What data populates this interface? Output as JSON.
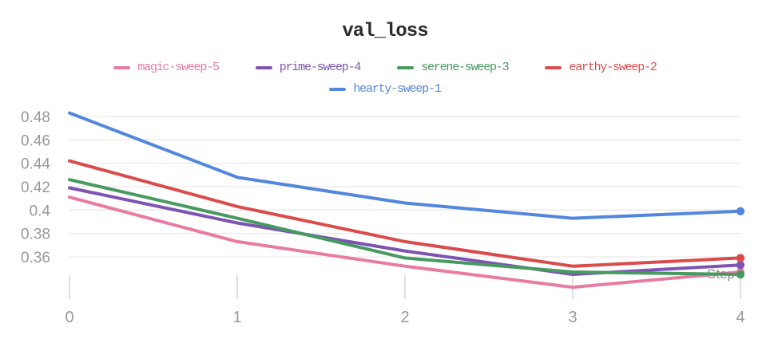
{
  "chart_data": {
    "type": "line",
    "title": "val_loss",
    "xlabel": "Step",
    "x": [
      0,
      1,
      2,
      3,
      4
    ],
    "xtick_labels": [
      "0",
      "1",
      "2",
      "3",
      "4"
    ],
    "ytick_values": [
      0.48,
      0.46,
      0.44,
      0.42,
      0.4,
      0.38,
      0.36
    ],
    "ytick_labels": [
      "0.48",
      "0.46",
      "0.44",
      "0.42",
      "0.4",
      "0.38",
      "0.36"
    ],
    "xlim": [
      0,
      4
    ],
    "ylim": [
      0.324,
      0.489
    ],
    "grid": "horizontal",
    "legend_position": "top",
    "series": [
      {
        "name": "magic-sweep-5",
        "color": "#E87B9F",
        "values": [
          0.411,
          0.373,
          0.352,
          0.334,
          0.347
        ]
      },
      {
        "name": "prime-sweep-4",
        "color": "#7D54B2",
        "values": [
          0.419,
          0.389,
          0.365,
          0.345,
          0.353
        ]
      },
      {
        "name": "serene-sweep-3",
        "color": "#479A5F",
        "values": [
          0.426,
          0.393,
          0.359,
          0.347,
          0.345
        ]
      },
      {
        "name": "earthy-sweep-2",
        "color": "#DA4C4C",
        "values": [
          0.442,
          0.403,
          0.373,
          0.352,
          0.359
        ]
      },
      {
        "name": "hearty-sweep-1",
        "color": "#5387DD",
        "values": [
          0.483,
          0.428,
          0.406,
          0.393,
          0.399
        ]
      }
    ],
    "colors": {
      "title": "#2b2b2b",
      "axis_text": "#999999",
      "step_label": "#8f8f8f",
      "gridline": "#e9e9e9",
      "tick_mark": "#d9d9d9",
      "background": "#ffffff"
    }
  }
}
